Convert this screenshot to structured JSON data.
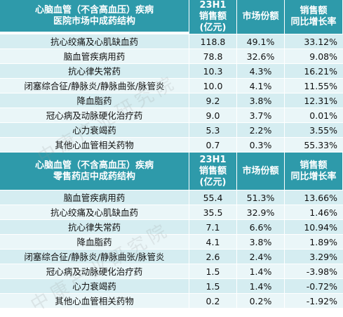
{
  "headers": {
    "sales": [
      "23H1",
      "销售额",
      "(亿元)"
    ],
    "share": "市场份额",
    "growth": [
      "销售额",
      "同比增长率"
    ]
  },
  "tables": [
    {
      "title": [
        "心脑血管（不含高血压）疾病",
        "医院市场中成药结构"
      ],
      "rows": [
        {
          "name": "抗心绞痛及心肌缺血药",
          "sales": "118.8",
          "share": "49.1%",
          "growth": "33.12%"
        },
        {
          "name": "脑血管疾病用药",
          "sales": "78.8",
          "share": "32.6%",
          "growth": "9.08%"
        },
        {
          "name": "抗心律失常药",
          "sales": "10.3",
          "share": "4.3%",
          "growth": "16.21%"
        },
        {
          "name": "闭塞综合征/静脉炎/静脉曲张/脉管炎",
          "sales": "10.0",
          "share": "4.1%",
          "growth": "11.55%"
        },
        {
          "name": "降血脂药",
          "sales": "9.2",
          "share": "3.8%",
          "growth": "12.31%"
        },
        {
          "name": "冠心病及动脉硬化治疗药",
          "sales": "9.0",
          "share": "3.7%",
          "growth": "0.01%"
        },
        {
          "name": "心力衰竭药",
          "sales": "5.3",
          "share": "2.2%",
          "growth": "3.55%"
        },
        {
          "name": "其他心血管相关药物",
          "sales": "0.7",
          "share": "0.3%",
          "growth": "55.33%"
        }
      ]
    },
    {
      "title": [
        "心脑血管（不含高血压）疾病",
        "零售药店中成药结构"
      ],
      "rows": [
        {
          "name": "脑血管疾病用药",
          "sales": "55.4",
          "share": "51.3%",
          "growth": "13.66%"
        },
        {
          "name": "抗心绞痛及心肌缺血药",
          "sales": "35.5",
          "share": "32.9%",
          "growth": "1.46%"
        },
        {
          "name": "抗心律失常药",
          "sales": "7.1",
          "share": "6.6%",
          "growth": "10.94%"
        },
        {
          "name": "降血脂药",
          "sales": "4.1",
          "share": "3.8%",
          "growth": "1.89%"
        },
        {
          "name": "闭塞综合征/静脉炎/静脉曲张/脉管炎",
          "sales": "2.6",
          "share": "2.4%",
          "growth": "3.29%"
        },
        {
          "name": "冠心病及动脉硬化治疗药",
          "sales": "1.5",
          "share": "1.4%",
          "growth": "-3.98%"
        },
        {
          "name": "心力衰竭药",
          "sales": "1.5",
          "share": "1.4%",
          "growth": "-0.72%"
        },
        {
          "name": "其他心血管相关药物",
          "sales": "0.2",
          "share": "0.2%",
          "growth": "-1.92%"
        }
      ]
    }
  ],
  "watermark": "中康产业研究院",
  "colors": {
    "header": "#2e9aaa",
    "row_dark": "#d5edf1",
    "row_light": "#eaf6f8"
  }
}
